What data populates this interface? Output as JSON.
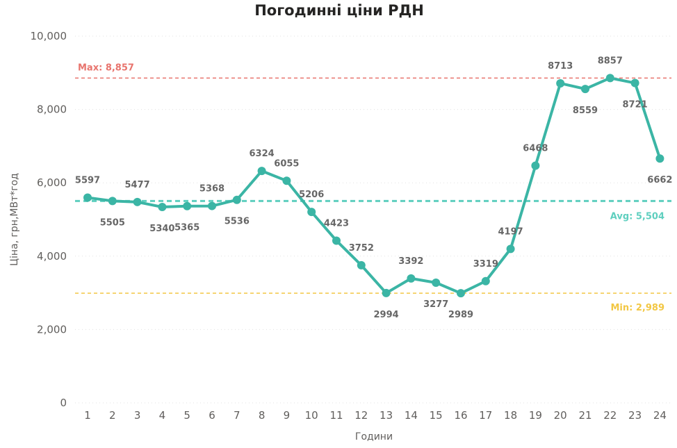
{
  "chart_data": {
    "type": "line",
    "title": "Погодинні ціни РДН",
    "xlabel": "Години",
    "ylabel": "Ціна, грн,МВт*год",
    "ylim": [
      0,
      10000
    ],
    "yticks": [
      "0",
      "2,000",
      "4,000",
      "6,000",
      "8,000",
      "10,000"
    ],
    "x": [
      "1",
      "2",
      "3",
      "4",
      "5",
      "6",
      "7",
      "8",
      "9",
      "10",
      "11",
      "12",
      "13",
      "14",
      "15",
      "16",
      "17",
      "18",
      "19",
      "20",
      "21",
      "22",
      "23",
      "24"
    ],
    "series": [
      {
        "color": "#3bb5a5",
        "values": [
          5597,
          5505,
          5477,
          5340,
          5365,
          5368,
          5536,
          6324,
          6055,
          5206,
          4423,
          3752,
          2994,
          3392,
          3277,
          2989,
          3319,
          4197,
          6468,
          8713,
          8559,
          8857,
          8721,
          6662
        ],
        "labels": [
          "5597",
          "5505",
          "5477",
          "5340",
          "5365",
          "5368",
          "5536",
          "6324",
          "6055",
          "5206",
          "4423",
          "3752",
          "2994",
          "3392",
          "3277",
          "2989",
          "3319",
          "4197",
          "6468",
          "8713",
          "8559",
          "8857",
          "8721",
          "6662"
        ]
      }
    ],
    "reference_lines": [
      {
        "label": "Max: 8,857",
        "value": 8857,
        "color": "#e8746d"
      },
      {
        "label": "Avg: 5,504",
        "value": 5504,
        "color": "#5fcfbf"
      },
      {
        "label": "Min: 2,989",
        "value": 2989,
        "color": "#f2c744"
      }
    ],
    "grid": true,
    "legend": "none"
  }
}
